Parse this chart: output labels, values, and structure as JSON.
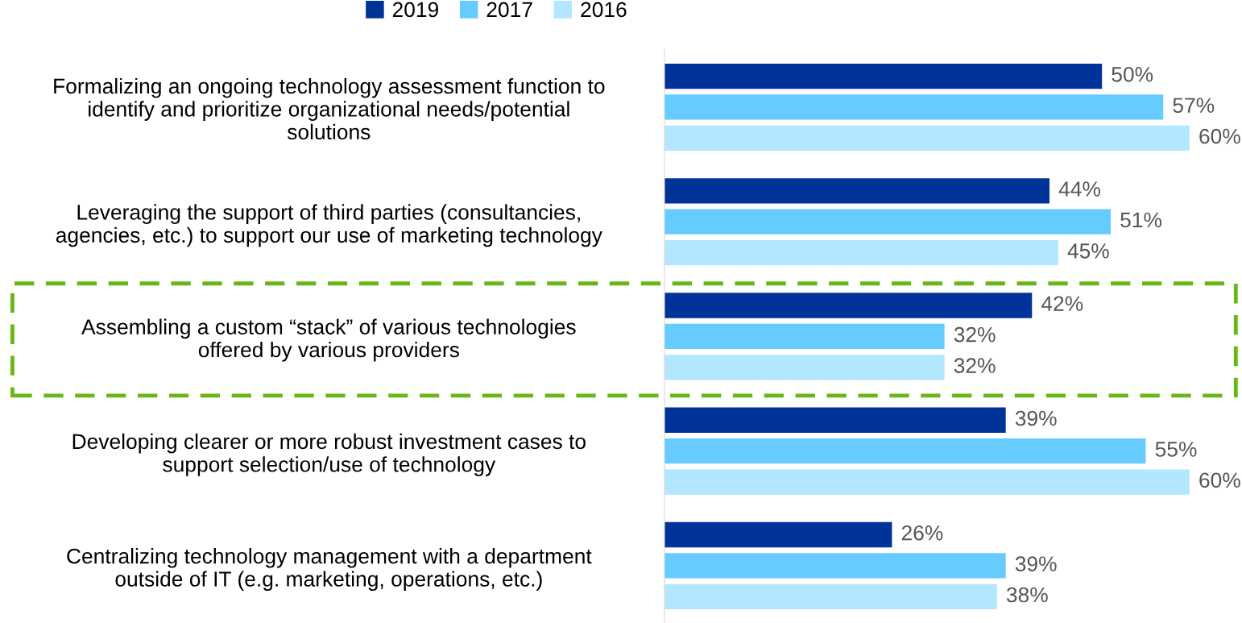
{
  "chart_data": {
    "type": "bar",
    "orientation": "horizontal",
    "categories": [
      "Formalizing an ongoing technology assessment function to\nidentify and prioritize organizational needs/potential\nsolutions",
      "Leveraging the support of third parties (consultancies,\nagencies, etc.) to support our use of marketing technology",
      "Assembling a custom “stack” of various technologies\noffered by various providers",
      "Developing clearer or more robust investment cases to\nsupport selection/use of technology",
      "Centralizing technology management with a department\noutside of IT (e.g. marketing, operations, etc.)"
    ],
    "series": [
      {
        "name": "2019",
        "color": "#003399",
        "values": [
          50,
          44,
          42,
          39,
          26
        ],
        "value_labels": [
          "50%",
          "44%",
          "42%",
          "39%",
          "26%"
        ]
      },
      {
        "name": "2017",
        "color": "#66ccff",
        "values": [
          57,
          51,
          32,
          55,
          39
        ],
        "value_labels": [
          "57%",
          "51%",
          "32%",
          "55%",
          "39%"
        ]
      },
      {
        "name": "2016",
        "color": "#b3e6ff",
        "values": [
          60,
          45,
          32,
          60,
          38
        ],
        "value_labels": [
          "60%",
          "45%",
          "32%",
          "60%",
          "38%"
        ]
      }
    ],
    "tick_labels": "y",
    "grid": false,
    "legend": "top"
  }
}
